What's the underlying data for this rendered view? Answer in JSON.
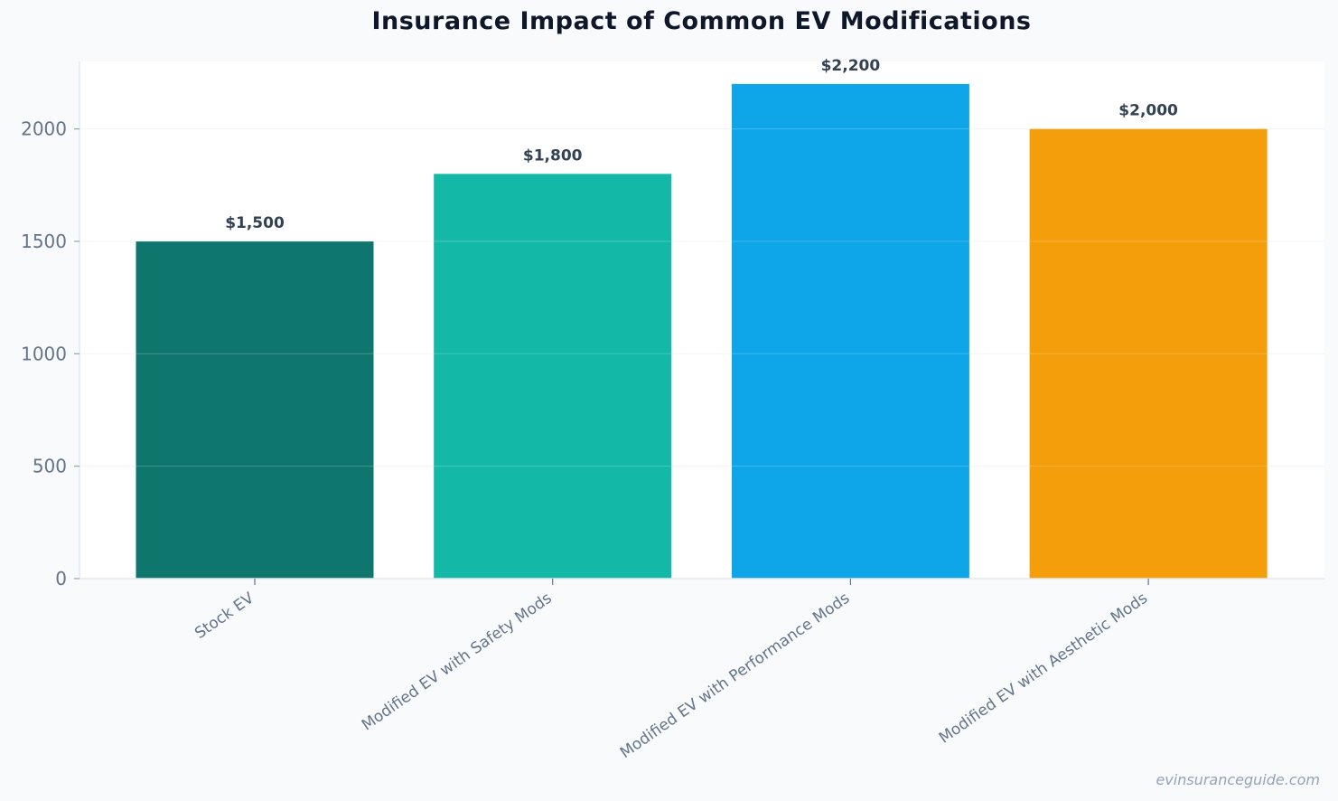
{
  "chart_data": {
    "type": "bar",
    "title": "Insurance Impact of Common EV Modifications",
    "xlabel": "",
    "ylabel": "",
    "categories": [
      "Stock EV",
      "Modified EV with Safety Mods",
      "Modified EV with Performance Mods",
      "Modified EV with Aesthetic Mods"
    ],
    "values": [
      1500,
      1800,
      2200,
      2000
    ],
    "value_labels": [
      "$1,500",
      "$1,800",
      "$2,200",
      "$2,000"
    ],
    "colors": [
      "#0f766e",
      "#14b8a6",
      "#0ea5e9",
      "#f59e0b"
    ],
    "ylim": [
      0,
      2300
    ],
    "yticks": [
      0,
      500,
      1000,
      1500,
      2000
    ],
    "grid": true,
    "legend": "none"
  },
  "watermark": "evinsuranceguide.com"
}
